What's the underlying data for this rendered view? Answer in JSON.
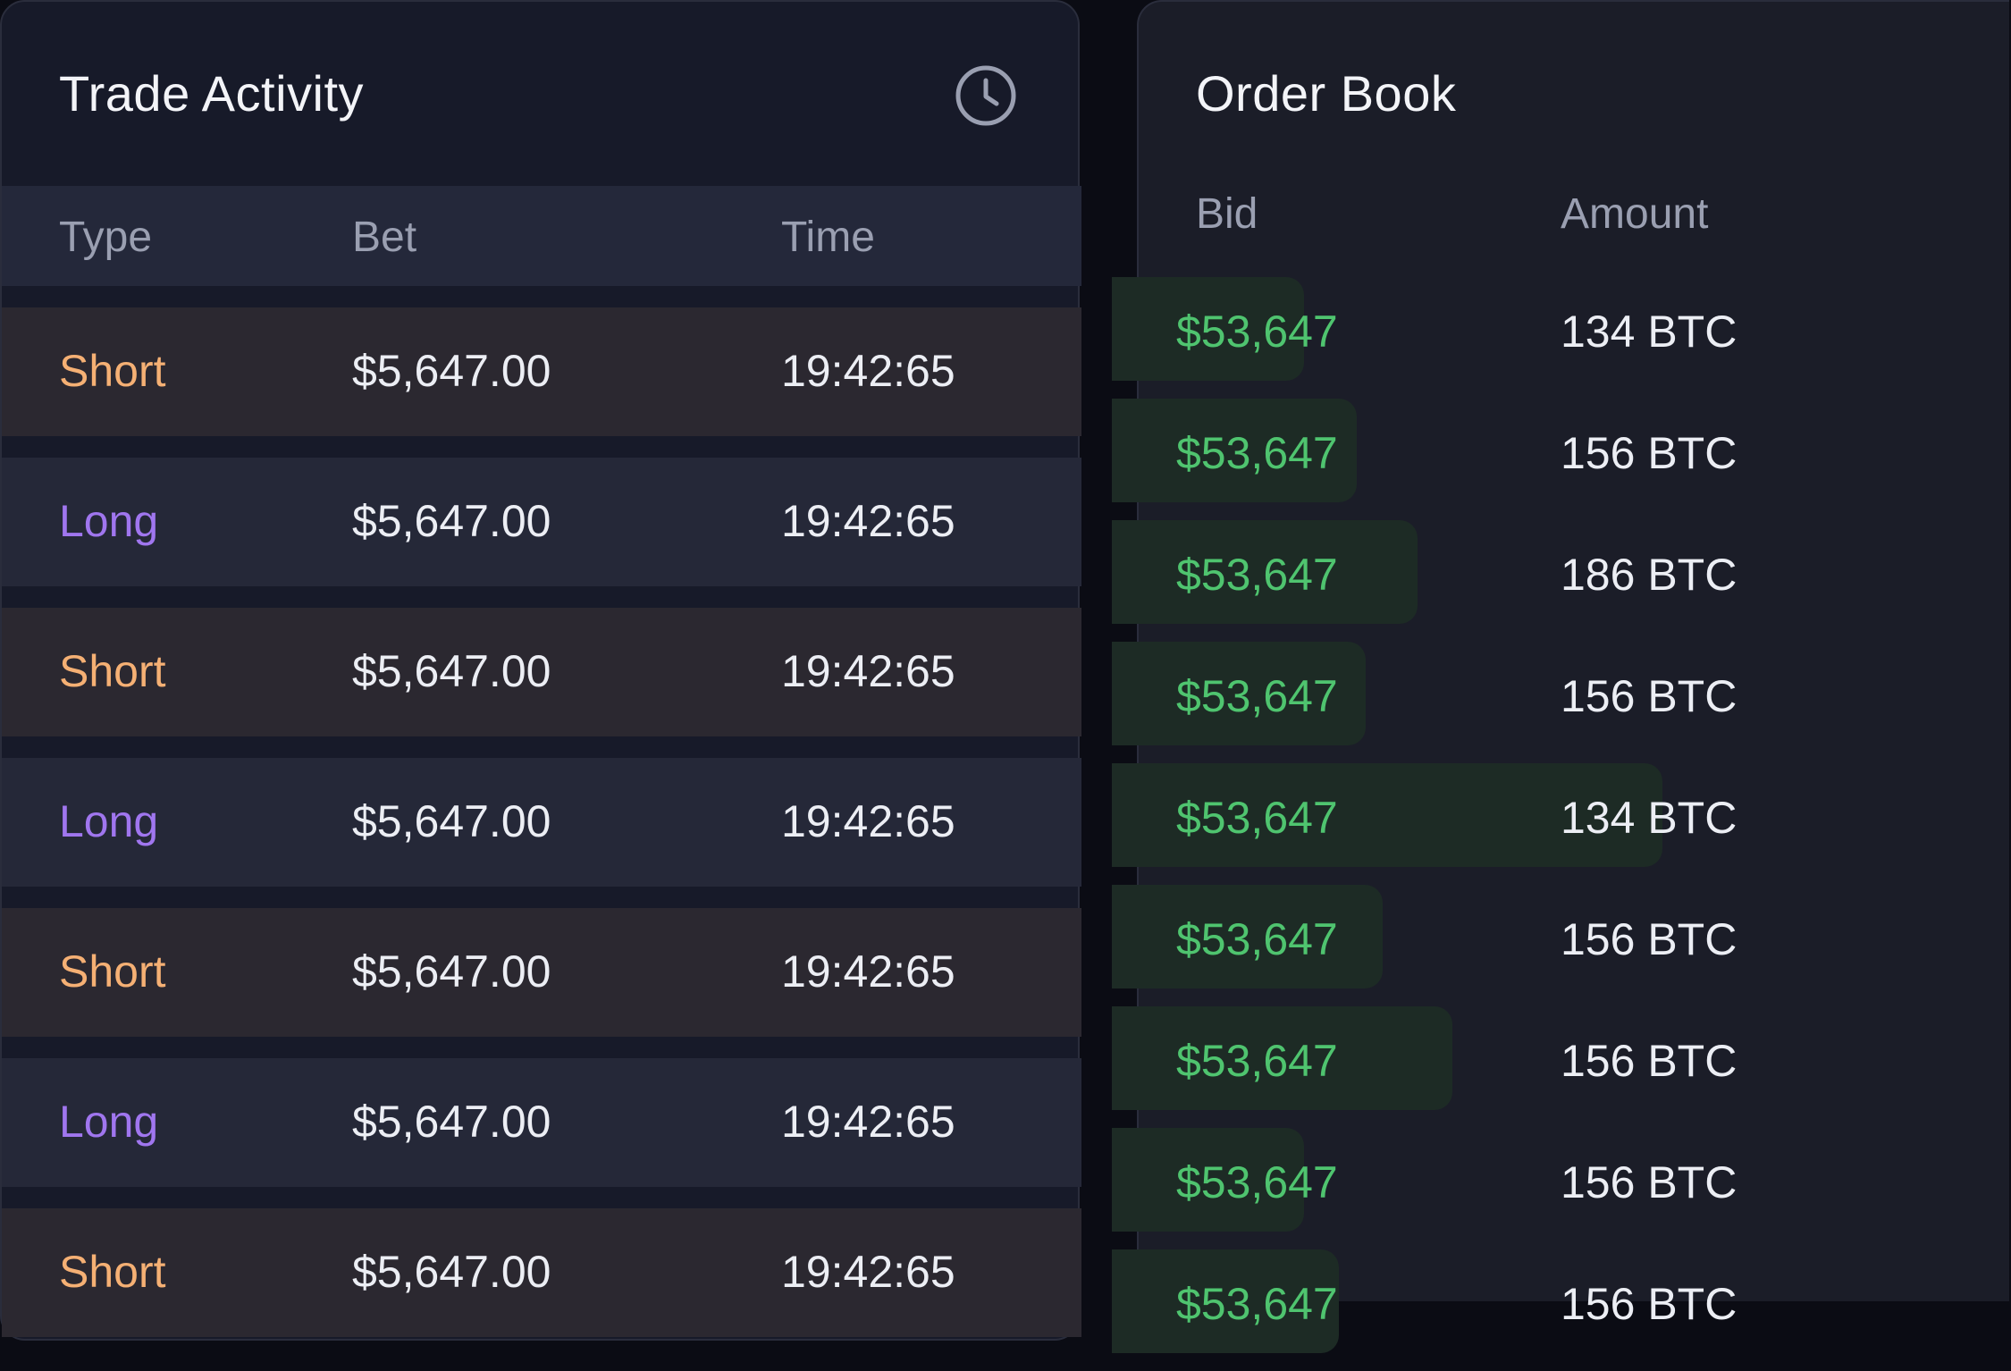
{
  "trade_activity": {
    "title": "Trade Activity",
    "icon": "clock-icon",
    "columns": {
      "type": "Type",
      "bet": "Bet",
      "time": "Time"
    },
    "rows": [
      {
        "type": "Short",
        "kind": "short",
        "bet": "$5,647.00",
        "time": "19:42:65"
      },
      {
        "type": "Long",
        "kind": "long",
        "bet": "$5,647.00",
        "time": "19:42:65"
      },
      {
        "type": "Short",
        "kind": "short",
        "bet": "$5,647.00",
        "time": "19:42:65"
      },
      {
        "type": "Long",
        "kind": "long",
        "bet": "$5,647.00",
        "time": "19:42:65"
      },
      {
        "type": "Short",
        "kind": "short",
        "bet": "$5,647.00",
        "time": "19:42:65"
      },
      {
        "type": "Long",
        "kind": "long",
        "bet": "$5,647.00",
        "time": "19:42:65"
      },
      {
        "type": "Short",
        "kind": "short",
        "bet": "$5,647.00",
        "time": "19:42:65"
      }
    ],
    "colors": {
      "short": "#f5b074",
      "long": "#a076ef"
    }
  },
  "order_book": {
    "title": "Order Book",
    "columns": {
      "bid": "Bid",
      "amount": "Amount"
    },
    "rows": [
      {
        "bid": "$53,647",
        "amount": "134 BTC",
        "depth": 0.19
      },
      {
        "bid": "$53,647",
        "amount": "156 BTC",
        "depth": 0.25
      },
      {
        "bid": "$53,647",
        "amount": "186 BTC",
        "depth": 0.32
      },
      {
        "bid": "$53,647",
        "amount": "156 BTC",
        "depth": 0.26
      },
      {
        "bid": "$53,647",
        "amount": "134 BTC",
        "depth": 0.6
      },
      {
        "bid": "$53,647",
        "amount": "156 BTC",
        "depth": 0.28
      },
      {
        "bid": "$53,647",
        "amount": "156 BTC",
        "depth": 0.36
      },
      {
        "bid": "$53,647",
        "amount": "156 BTC",
        "depth": 0.19
      },
      {
        "bid": "$53,647",
        "amount": "156 BTC",
        "depth": 0.23
      }
    ],
    "colors": {
      "bid": "#4fc46f",
      "depth_bar": "#1d2b25"
    }
  }
}
